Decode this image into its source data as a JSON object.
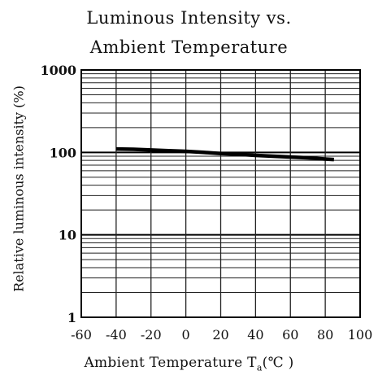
{
  "chart_data": {
    "type": "line",
    "title": "Luminous Intensity vs.",
    "subtitle": "Ambient Temperature",
    "xlabel": "Ambient Temperature T",
    "xlabel_sub": "a",
    "xlabel_unit": "(℃ )",
    "ylabel": "Relative luminous intensity (%)",
    "xlim": [
      -60,
      100
    ],
    "ylim": [
      1,
      1000
    ],
    "yscale": "log",
    "xticks": [
      "-60",
      "-40",
      "-20",
      "0",
      "20",
      "40",
      "60",
      "80",
      "100"
    ],
    "yticks": [
      "1",
      "10",
      "100",
      "1000"
    ],
    "grid": true,
    "series": [
      {
        "x": [
          -40,
          -30,
          -20,
          -10,
          0,
          10,
          20,
          30,
          40,
          50,
          60,
          70,
          80,
          85
        ],
        "y": [
          110,
          109,
          107,
          105,
          103,
          100,
          97,
          95,
          92,
          90,
          88,
          86,
          83,
          82
        ],
        "color": "#000000"
      }
    ]
  }
}
